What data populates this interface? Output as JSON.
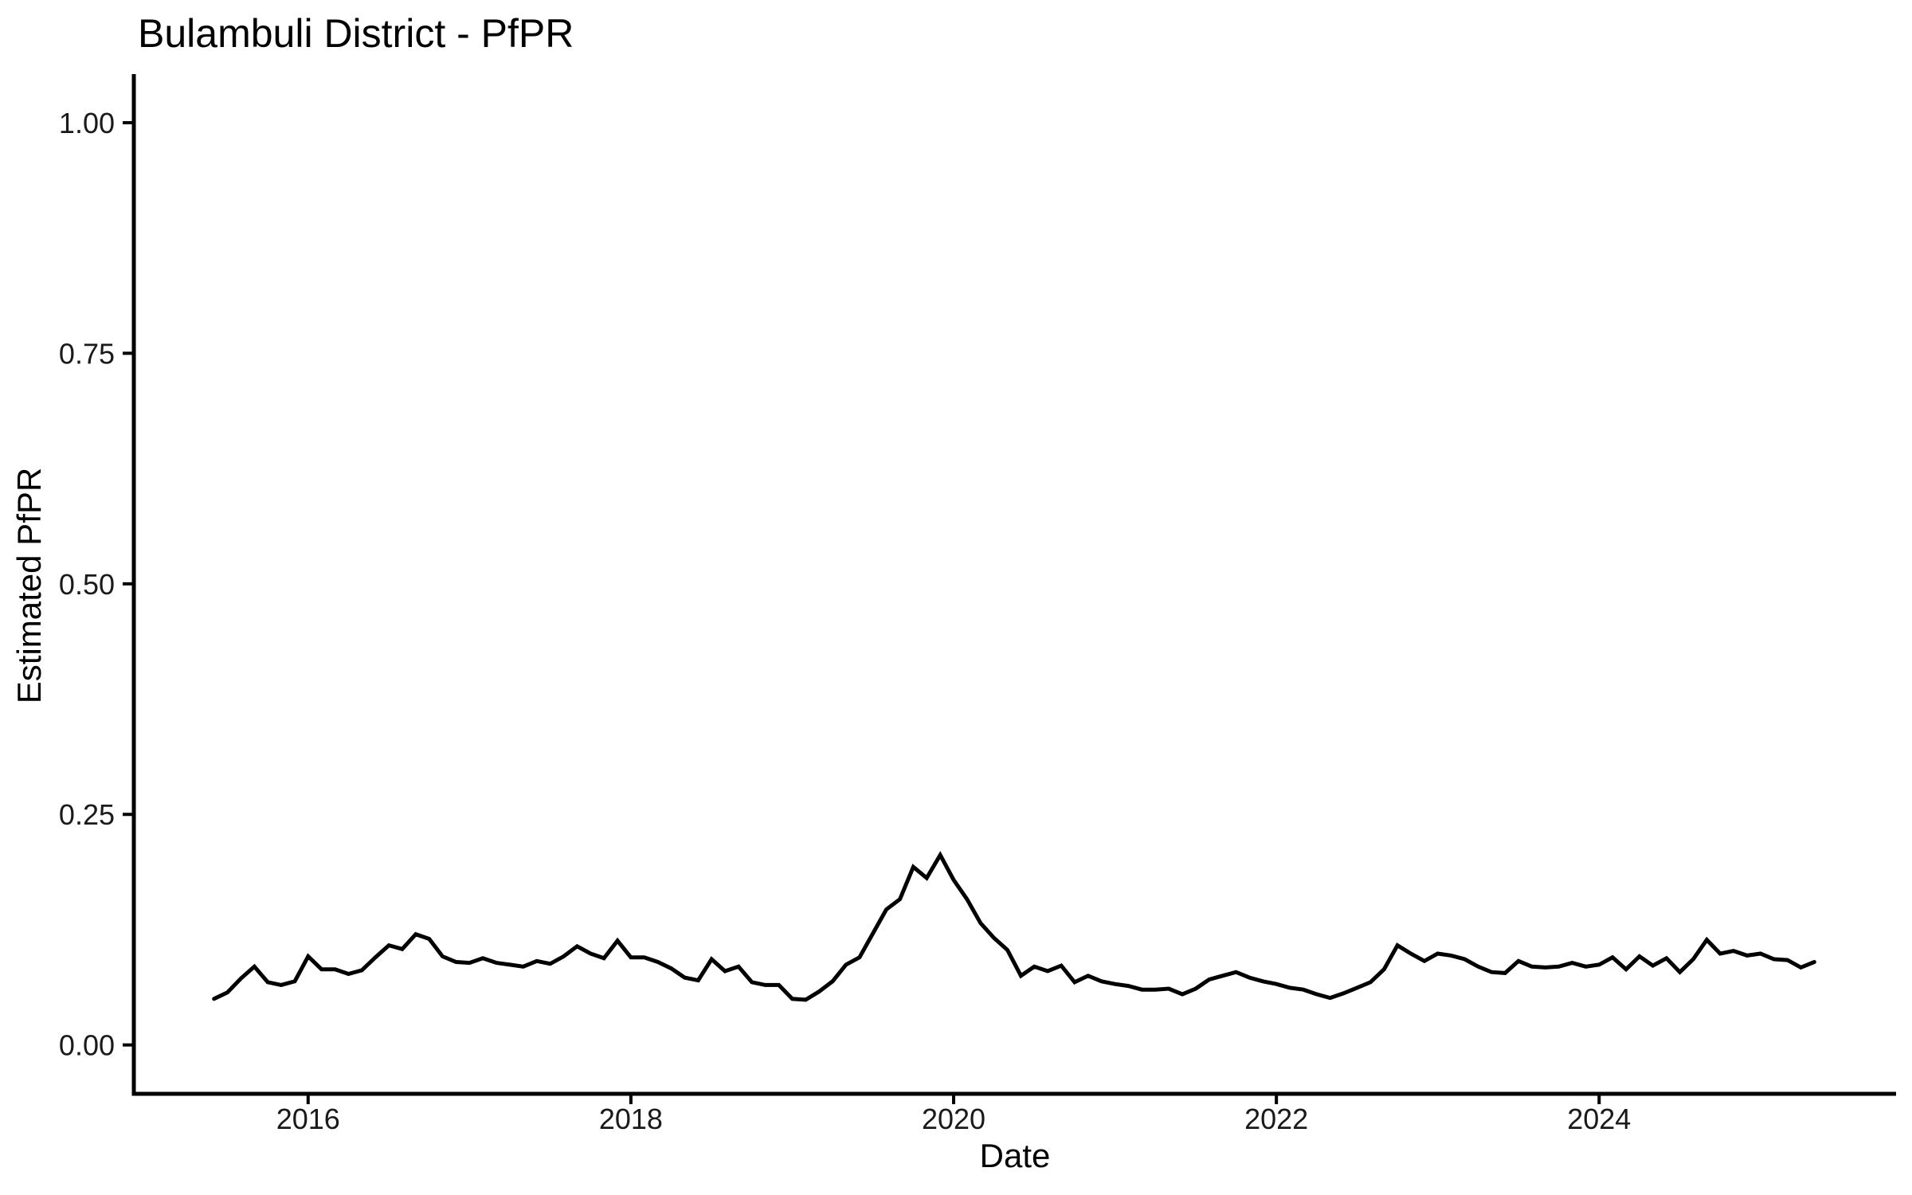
{
  "title": "Bulambuli District - PfPR",
  "chart_data": {
    "type": "line",
    "title": "Bulambuli District - PfPR",
    "xlabel": "Date",
    "ylabel": "Estimated PfPR",
    "x_tick_labels": [
      "2016",
      "2018",
      "2020",
      "2022",
      "2024"
    ],
    "x_tick_values": [
      2016,
      2018,
      2020,
      2022,
      2024
    ],
    "y_tick_labels": [
      "0.00",
      "0.25",
      "0.50",
      "0.75",
      "1.00"
    ],
    "y_tick_values": [
      0,
      0.25,
      0.5,
      0.75,
      1.0
    ],
    "xlim": [
      2014.92,
      2025.84
    ],
    "ylim": [
      -0.053,
      1.051
    ],
    "grid": false,
    "legend": false,
    "line_color": "#000000",
    "axis_color": "#000000",
    "background": "#ffffff",
    "x_unit": "decimal_year_monthly",
    "series": [
      {
        "name": "Estimated PfPR",
        "x": [
          2015.417,
          2015.5,
          2015.583,
          2015.667,
          2015.75,
          2015.833,
          2015.917,
          2016.0,
          2016.083,
          2016.167,
          2016.25,
          2016.333,
          2016.417,
          2016.5,
          2016.583,
          2016.667,
          2016.75,
          2016.833,
          2016.917,
          2017.0,
          2017.083,
          2017.167,
          2017.25,
          2017.333,
          2017.417,
          2017.5,
          2017.583,
          2017.667,
          2017.75,
          2017.833,
          2017.917,
          2018.0,
          2018.083,
          2018.167,
          2018.25,
          2018.333,
          2018.417,
          2018.5,
          2018.583,
          2018.667,
          2018.75,
          2018.833,
          2018.917,
          2019.0,
          2019.083,
          2019.167,
          2019.25,
          2019.333,
          2019.417,
          2019.5,
          2019.583,
          2019.667,
          2019.75,
          2019.833,
          2019.917,
          2020.0,
          2020.083,
          2020.167,
          2020.25,
          2020.333,
          2020.417,
          2020.5,
          2020.583,
          2020.667,
          2020.75,
          2020.833,
          2020.917,
          2021.0,
          2021.083,
          2021.167,
          2021.25,
          2021.333,
          2021.417,
          2021.5,
          2021.583,
          2021.667,
          2021.75,
          2021.833,
          2021.917,
          2022.0,
          2022.083,
          2022.167,
          2022.25,
          2022.333,
          2022.417,
          2022.5,
          2022.583,
          2022.667,
          2022.75,
          2022.833,
          2022.917,
          2023.0,
          2023.083,
          2023.167,
          2023.25,
          2023.333,
          2023.417,
          2023.5,
          2023.583,
          2023.667,
          2023.75,
          2023.833,
          2023.917,
          2024.0,
          2024.083,
          2024.167,
          2024.25,
          2024.333,
          2024.417,
          2024.5,
          2024.583,
          2024.667,
          2024.75,
          2024.833,
          2024.917,
          2025.0,
          2025.083,
          2025.167,
          2025.25,
          2025.333
        ],
        "y": [
          0.05,
          0.057,
          0.072,
          0.085,
          0.068,
          0.065,
          0.069,
          0.096,
          0.082,
          0.082,
          0.077,
          0.081,
          0.095,
          0.108,
          0.104,
          0.12,
          0.115,
          0.096,
          0.09,
          0.089,
          0.094,
          0.089,
          0.087,
          0.085,
          0.091,
          0.088,
          0.096,
          0.107,
          0.099,
          0.094,
          0.113,
          0.095,
          0.095,
          0.09,
          0.083,
          0.073,
          0.07,
          0.093,
          0.08,
          0.085,
          0.068,
          0.065,
          0.065,
          0.05,
          0.049,
          0.058,
          0.069,
          0.087,
          0.095,
          0.121,
          0.147,
          0.158,
          0.193,
          0.181,
          0.206,
          0.179,
          0.158,
          0.132,
          0.116,
          0.103,
          0.075,
          0.085,
          0.08,
          0.086,
          0.068,
          0.075,
          0.069,
          0.066,
          0.064,
          0.06,
          0.06,
          0.061,
          0.055,
          0.061,
          0.071,
          0.075,
          0.079,
          0.073,
          0.069,
          0.066,
          0.062,
          0.06,
          0.055,
          0.051,
          0.056,
          0.062,
          0.068,
          0.082,
          0.108,
          0.099,
          0.091,
          0.099,
          0.097,
          0.093,
          0.085,
          0.079,
          0.078,
          0.091,
          0.085,
          0.084,
          0.085,
          0.089,
          0.085,
          0.087,
          0.095,
          0.082,
          0.096,
          0.086,
          0.094,
          0.079,
          0.093,
          0.114,
          0.099,
          0.102,
          0.097,
          0.099,
          0.093,
          0.092,
          0.084,
          0.09
        ]
      }
    ]
  }
}
